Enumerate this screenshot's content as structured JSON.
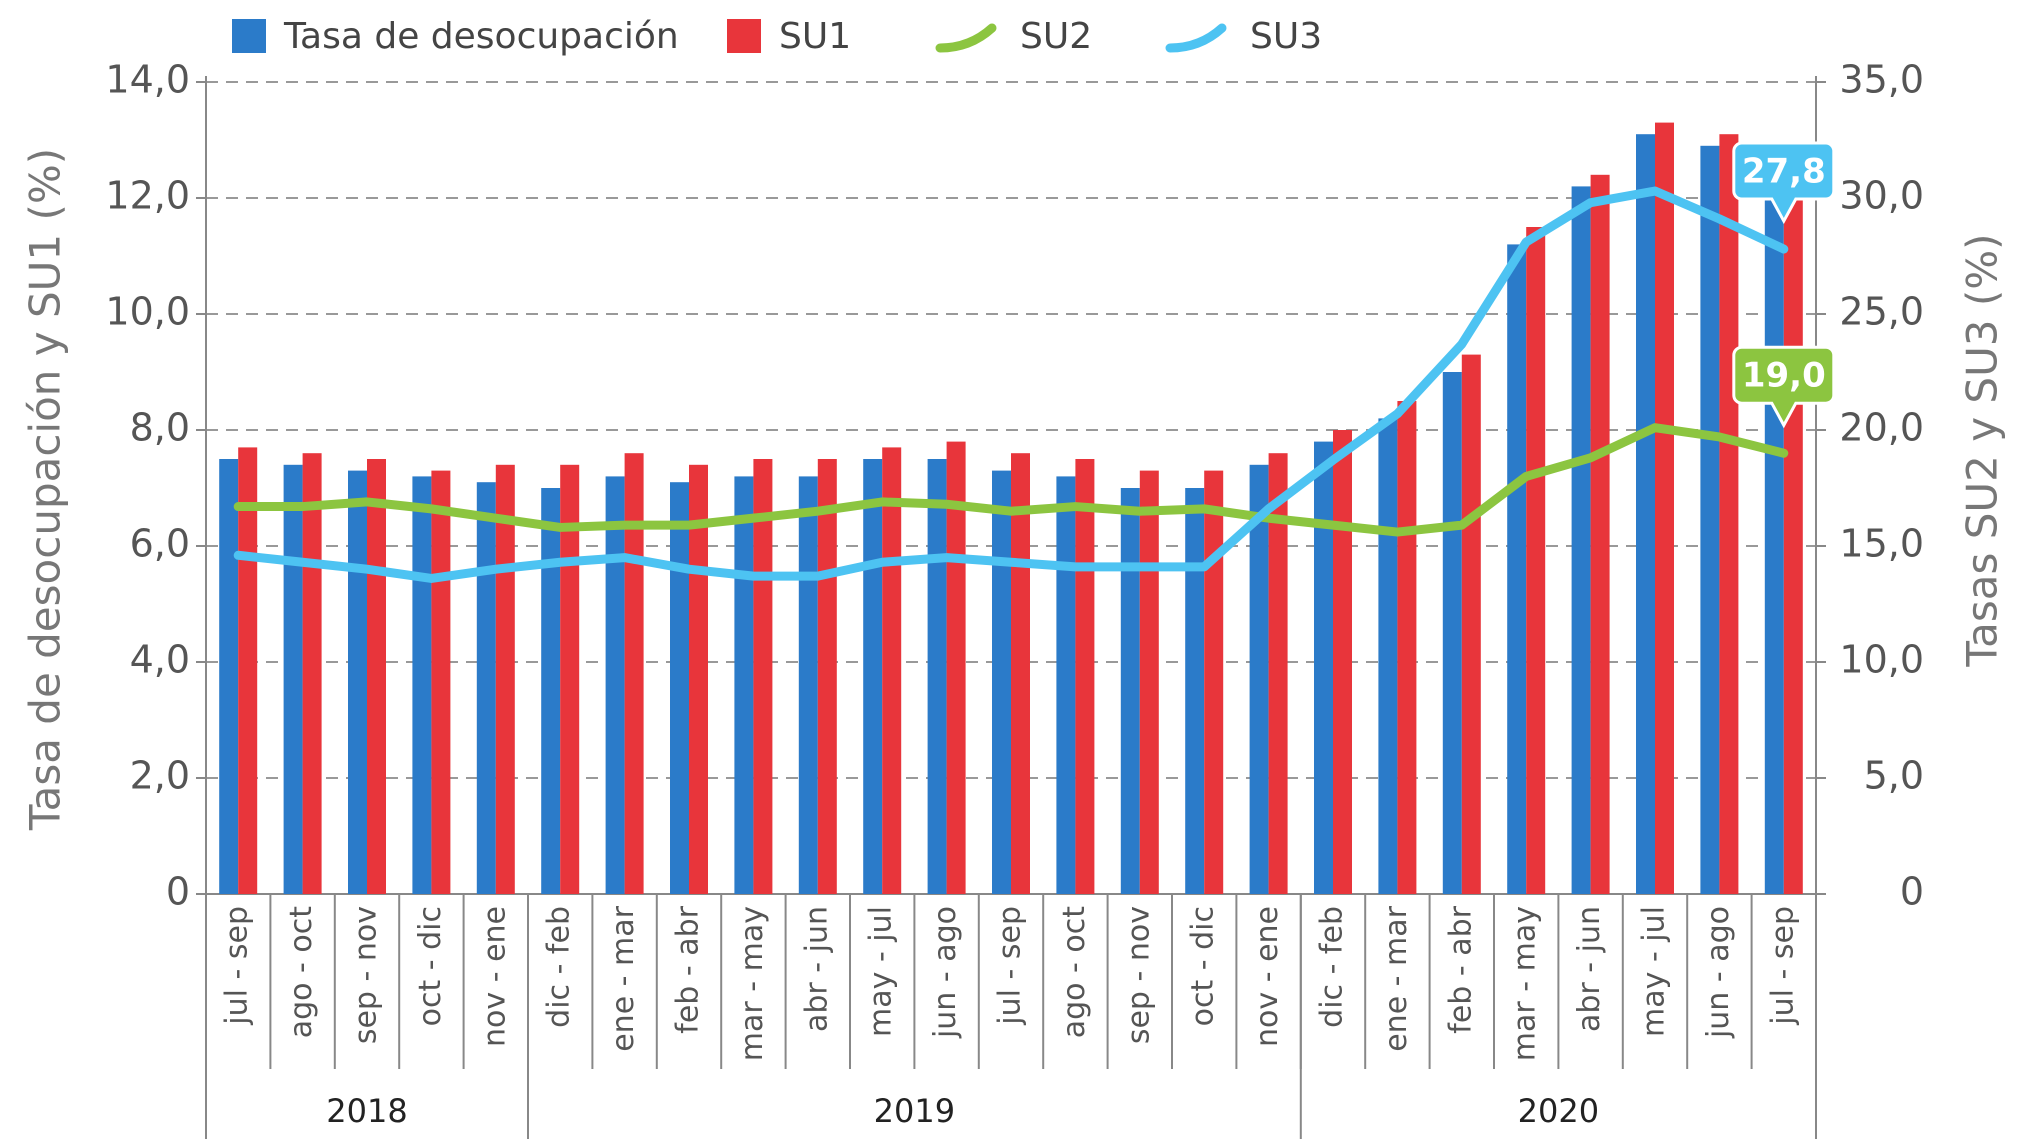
{
  "chart_data": {
    "type": "bar",
    "y_label": "Tasa de desocupación y SU1 (%)",
    "y2_label": "Tasas SU2 y SU3 (%)",
    "categories": [
      "jul - sep",
      "ago - oct",
      "sep - nov",
      "oct - dic",
      "nov - ene",
      "dic - feb",
      "ene - mar",
      "feb - abr",
      "mar - may",
      "abr - jun",
      "may - jul",
      "jun - ago",
      "jul - sep",
      "ago - oct",
      "sep - nov",
      "oct - dic",
      "nov - ene",
      "dic - feb",
      "ene - mar",
      "feb - abr",
      "mar - may",
      "abr - jun",
      "may - jul",
      "jun - ago",
      "jul - sep"
    ],
    "year_groups": [
      {
        "label": "2018",
        "span": 5
      },
      {
        "label": "2019",
        "span": 12
      },
      {
        "label": "2020",
        "span": 8
      }
    ],
    "ylim": [
      0,
      14
    ],
    "yticks": [
      0,
      {
        "value": 2,
        "label": "2,0"
      },
      {
        "value": 4,
        "label": "4,0"
      },
      {
        "value": 6,
        "label": "6,0"
      },
      {
        "value": 8,
        "label": "8,0"
      },
      {
        "value": 10,
        "label": "10,0"
      },
      {
        "value": 12,
        "label": "12,0"
      },
      {
        "value": 14,
        "label": "14,0"
      }
    ],
    "y2lim": [
      0,
      35
    ],
    "y2ticks": [
      0,
      {
        "value": 5,
        "label": "5,0"
      },
      {
        "value": 10,
        "label": "10,0"
      },
      {
        "value": 15,
        "label": "15,0"
      },
      {
        "value": 20,
        "label": "20,0"
      },
      {
        "value": 25,
        "label": "25,0"
      },
      {
        "value": 30,
        "label": "30,0"
      },
      {
        "value": 35,
        "label": "35,0"
      }
    ],
    "grid": true,
    "series": [
      {
        "name": "Tasa de desocupación",
        "type": "bar",
        "color": "#2b7bc9",
        "values": [
          7.5,
          7.4,
          7.3,
          7.2,
          7.1,
          7.0,
          7.2,
          7.1,
          7.2,
          7.2,
          7.5,
          7.5,
          7.3,
          7.2,
          7.0,
          7.0,
          7.4,
          7.8,
          8.2,
          9.0,
          11.2,
          12.2,
          13.1,
          12.9,
          12.3
        ]
      },
      {
        "name": "SU1",
        "type": "bar",
        "color": "#e8353b",
        "values": [
          7.7,
          7.6,
          7.5,
          7.3,
          7.4,
          7.4,
          7.6,
          7.4,
          7.5,
          7.5,
          7.7,
          7.8,
          7.6,
          7.5,
          7.3,
          7.3,
          7.6,
          8.0,
          8.5,
          9.3,
          11.5,
          12.4,
          13.3,
          13.1,
          12.7
        ]
      },
      {
        "name": "SU2",
        "type": "line",
        "axis": "y2",
        "color": "#8cc540",
        "values": [
          16.7,
          16.7,
          16.9,
          16.6,
          16.2,
          15.8,
          15.9,
          15.9,
          16.2,
          16.5,
          16.9,
          16.8,
          16.5,
          16.7,
          16.5,
          16.6,
          16.2,
          15.9,
          15.6,
          15.9,
          18.0,
          18.8,
          20.1,
          19.7,
          19.0
        ],
        "value_labels": [
          null,
          null,
          null,
          null,
          null,
          null,
          null,
          null,
          null,
          null,
          null,
          null,
          null,
          null,
          null,
          null,
          null,
          null,
          null,
          null,
          null,
          null,
          null,
          null,
          "19,0"
        ]
      },
      {
        "name": "SU3",
        "type": "line",
        "axis": "y2",
        "color": "#4dc3f2",
        "values": [
          14.6,
          14.3,
          14.0,
          13.6,
          14.0,
          14.3,
          14.5,
          14.0,
          13.7,
          13.7,
          14.3,
          14.5,
          14.3,
          14.1,
          14.1,
          14.1,
          16.6,
          18.7,
          20.7,
          23.7,
          28.1,
          29.8,
          30.3,
          29.1,
          27.8
        ],
        "value_labels": [
          null,
          null,
          null,
          null,
          null,
          null,
          null,
          null,
          null,
          null,
          null,
          null,
          null,
          null,
          null,
          null,
          null,
          null,
          null,
          null,
          null,
          null,
          null,
          null,
          "27,8"
        ]
      }
    ]
  }
}
